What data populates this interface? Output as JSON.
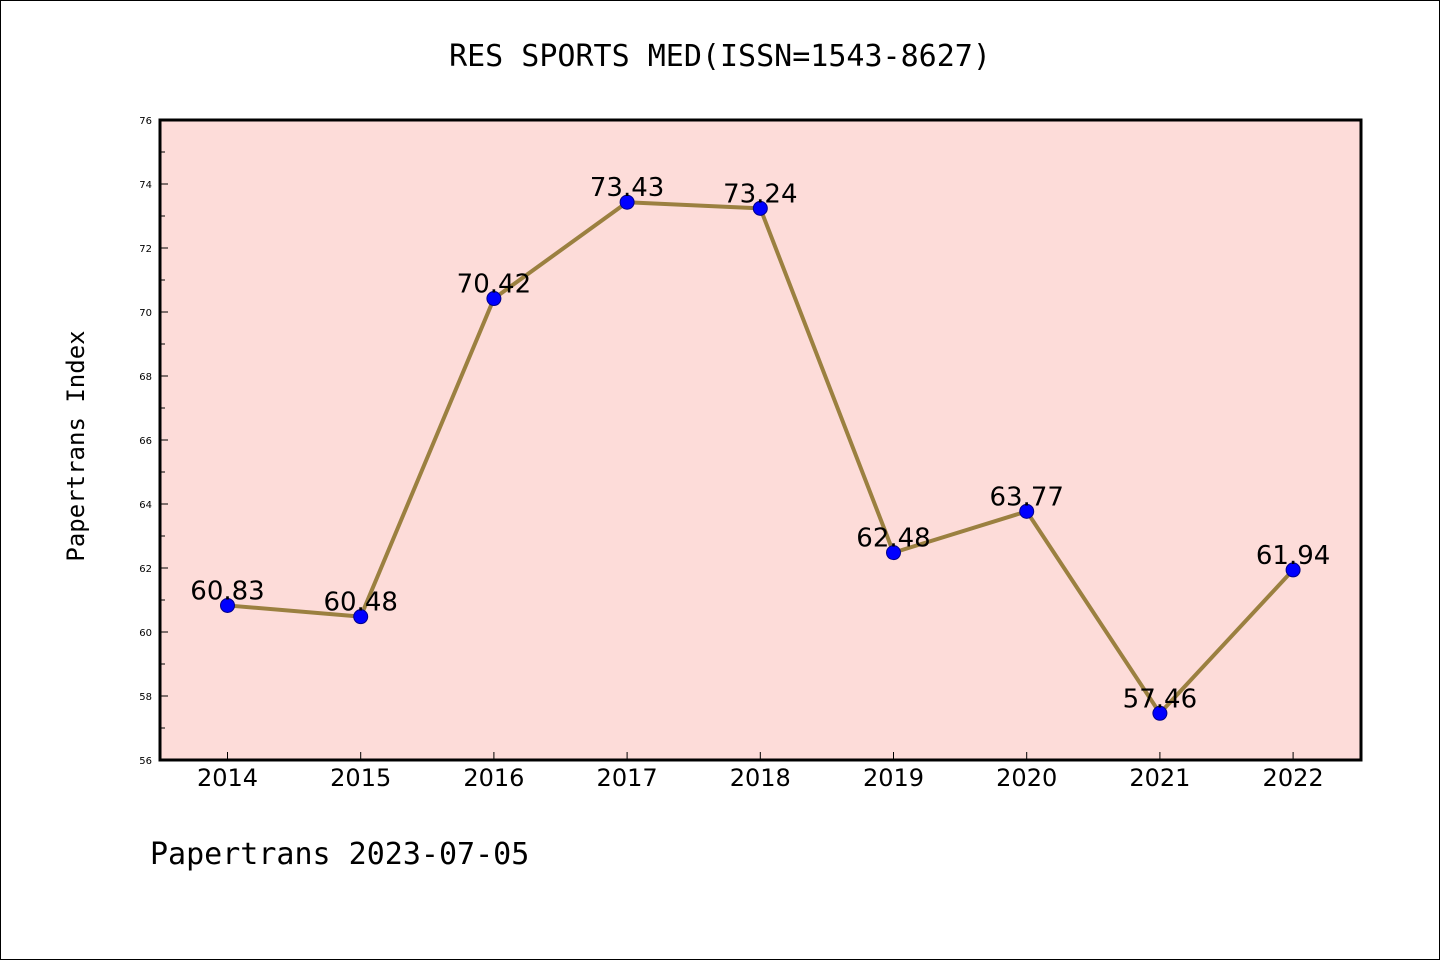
{
  "chart_data": {
    "type": "line",
    "title": "RES SPORTS MED(ISSN=1543-8627)",
    "ylabel": "Papertrans Index",
    "xlabel": "",
    "categories": [
      "2014",
      "2015",
      "2016",
      "2017",
      "2018",
      "2019",
      "2020",
      "2021",
      "2022"
    ],
    "values": [
      60.83,
      60.48,
      70.42,
      73.43,
      73.24,
      62.48,
      63.77,
      57.46,
      61.94
    ],
    "value_labels": [
      "60.83",
      "60.48",
      "70.42",
      "73.43",
      "73.24",
      "62.48",
      "63.77",
      "57.46",
      "61.94"
    ],
    "ylim": [
      56,
      76
    ],
    "yticks": [
      "56",
      "58",
      "60",
      "62",
      "64",
      "66",
      "68",
      "70",
      "72",
      "74",
      "76"
    ],
    "grid": false,
    "line_color": "#9b8040",
    "marker_color": "#0000ff",
    "plot_background": "#fddcd9"
  },
  "footer": "Papertrans 2023-07-05"
}
